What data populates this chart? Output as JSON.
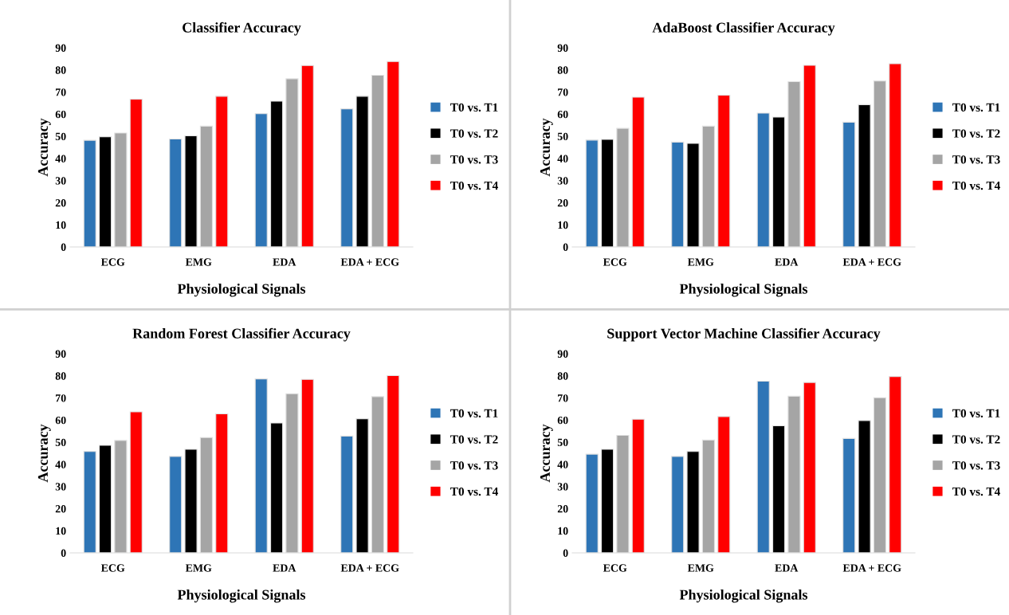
{
  "chart_data": [
    {
      "type": "bar",
      "title": "Classifier Accuracy",
      "xlabel": "Physiological Signals",
      "ylabel": "Accuracy",
      "categories": [
        "ECG",
        "EMG",
        "EDA",
        "EDA + ECG"
      ],
      "ylim": [
        0,
        90
      ],
      "yticks": [
        0,
        10,
        20,
        30,
        40,
        50,
        60,
        70,
        80,
        90
      ],
      "grid": false,
      "legend": "right",
      "series": [
        {
          "name": "T0 vs. T1",
          "color": "#2e75b6",
          "values": [
            48.2,
            48.8,
            60.2,
            62.4
          ]
        },
        {
          "name": "T0 vs. T2",
          "color": "#000000",
          "values": [
            49.8,
            50.2,
            65.9,
            68.1
          ]
        },
        {
          "name": "T0 vs. T3",
          "color": "#a5a5a5",
          "values": [
            51.5,
            54.6,
            76.0,
            77.6
          ]
        },
        {
          "name": "T0 vs. T4",
          "color": "#ff0000",
          "values": [
            66.8,
            68.1,
            82.0,
            83.8
          ]
        }
      ]
    },
    {
      "type": "bar",
      "title": "AdaBoost Classifier Accuracy",
      "xlabel": "Physiological Signals",
      "ylabel": "Accuracy",
      "categories": [
        "ECG",
        "EMG",
        "EDA",
        "EDA + ECG"
      ],
      "ylim": [
        0,
        90
      ],
      "yticks": [
        0,
        10,
        20,
        30,
        40,
        50,
        60,
        70,
        80,
        90
      ],
      "grid": false,
      "legend": "right",
      "series": [
        {
          "name": "T0 vs. T1",
          "color": "#2e75b6",
          "values": [
            48.3,
            47.4,
            60.5,
            56.4
          ]
        },
        {
          "name": "T0 vs. T2",
          "color": "#000000",
          "values": [
            48.6,
            46.8,
            58.7,
            64.3
          ]
        },
        {
          "name": "T0 vs. T3",
          "color": "#a5a5a5",
          "values": [
            53.6,
            54.6,
            74.7,
            75.0
          ]
        },
        {
          "name": "T0 vs. T4",
          "color": "#ff0000",
          "values": [
            67.7,
            68.6,
            82.1,
            82.8
          ]
        }
      ]
    },
    {
      "type": "bar",
      "title": "Random Forest Classifier Accuracy",
      "xlabel": "Physiological Signals",
      "ylabel": "Accuracy",
      "categories": [
        "ECG",
        "EMG",
        "EDA",
        "EDA + ECG"
      ],
      "ylim": [
        0,
        90
      ],
      "yticks": [
        0,
        10,
        20,
        30,
        40,
        50,
        60,
        70,
        80,
        90
      ],
      "grid": false,
      "legend": "right",
      "series": [
        {
          "name": "T0 vs. T1",
          "color": "#2e75b6",
          "values": [
            45.8,
            43.6,
            78.6,
            52.8
          ]
        },
        {
          "name": "T0 vs. T2",
          "color": "#000000",
          "values": [
            48.6,
            46.8,
            58.7,
            60.6
          ]
        },
        {
          "name": "T0 vs. T3",
          "color": "#a5a5a5",
          "values": [
            50.8,
            52.1,
            71.9,
            70.6
          ]
        },
        {
          "name": "T0 vs. T4",
          "color": "#ff0000",
          "values": [
            63.7,
            62.8,
            78.4,
            80.1
          ]
        }
      ]
    },
    {
      "type": "bar",
      "title": "Support Vector Machine Classifier Accuracy",
      "xlabel": "Physiological Signals",
      "ylabel": "Accuracy",
      "categories": [
        "ECG",
        "EMG",
        "EDA",
        "EDA + ECG"
      ],
      "ylim": [
        0,
        90
      ],
      "yticks": [
        0,
        10,
        20,
        30,
        40,
        50,
        60,
        70,
        80,
        90
      ],
      "grid": false,
      "legend": "right",
      "series": [
        {
          "name": "T0 vs. T1",
          "color": "#2e75b6",
          "values": [
            44.6,
            43.6,
            77.6,
            51.7
          ]
        },
        {
          "name": "T0 vs. T2",
          "color": "#000000",
          "values": [
            46.8,
            45.8,
            57.4,
            59.8
          ]
        },
        {
          "name": "T0 vs. T3",
          "color": "#a5a5a5",
          "values": [
            53.1,
            51.0,
            70.8,
            70.1
          ]
        },
        {
          "name": "T0 vs. T4",
          "color": "#ff0000",
          "values": [
            60.4,
            61.6,
            77.0,
            79.7
          ]
        }
      ]
    }
  ]
}
